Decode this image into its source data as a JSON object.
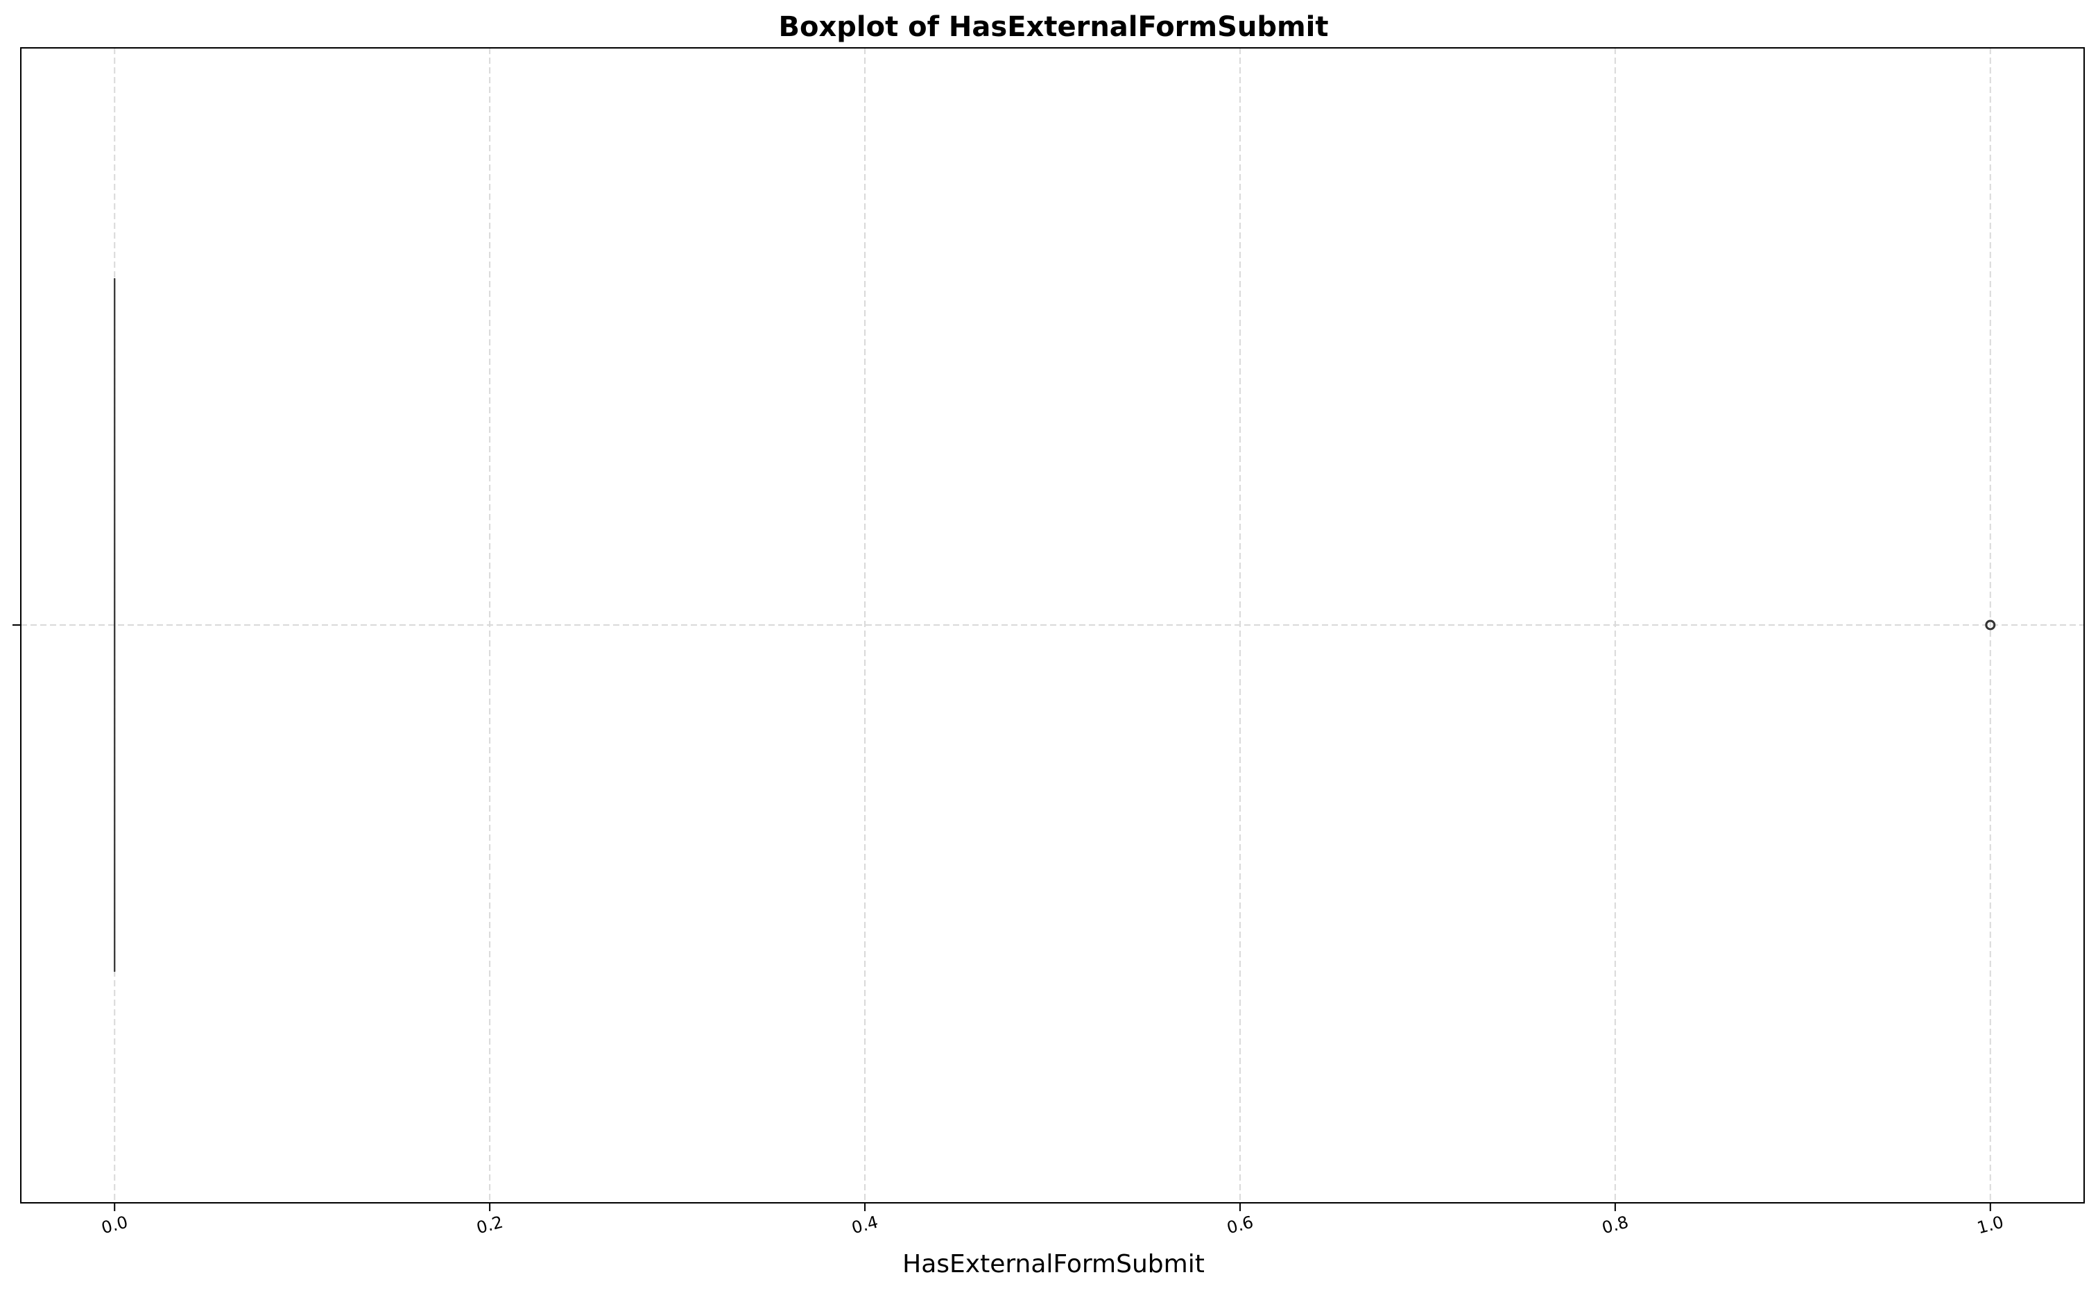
{
  "chart_data": {
    "type": "boxplot",
    "title": "Boxplot of HasExternalFormSubmit",
    "xlabel": "HasExternalFormSubmit",
    "ylabel": "",
    "orientation": "horizontal",
    "xlim": [
      -0.05,
      1.05
    ],
    "x_ticks": [
      0.0,
      0.2,
      0.4,
      0.6,
      0.8,
      1.0
    ],
    "x_tick_labels": [
      "0.0",
      "0.2",
      "0.4",
      "0.6",
      "0.8",
      "1.0"
    ],
    "grid": true,
    "box": {
      "q1": 0.0,
      "median": 0.0,
      "q3": 0.0,
      "whisker_low": 0.0,
      "whisker_high": 0.0
    },
    "outliers": [
      1.0
    ],
    "colors": {
      "box_edge": "#333333",
      "grid": "#d9d9d9",
      "axes": "#000000"
    }
  }
}
